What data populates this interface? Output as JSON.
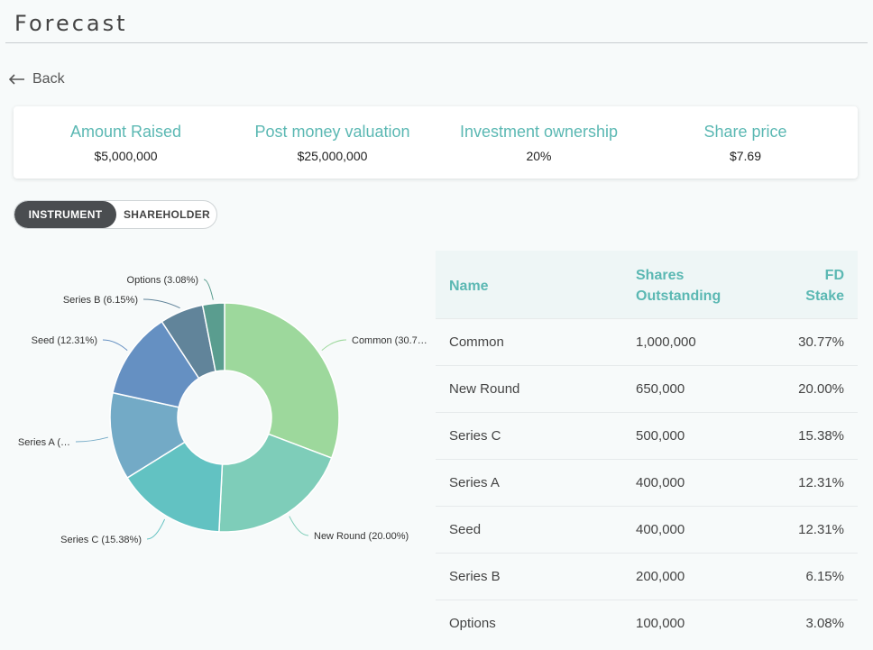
{
  "page": {
    "title": "Forecast",
    "back_label": "Back"
  },
  "summary": [
    {
      "label": "Amount Raised",
      "value": "$5,000,000"
    },
    {
      "label": "Post money valuation",
      "value": "$25,000,000"
    },
    {
      "label": "Investment ownership",
      "value": "20%"
    },
    {
      "label": "Share price",
      "value": "$7.69"
    }
  ],
  "toggle": {
    "active": "INSTRUMENT",
    "inactive": "SHAREHOLDER"
  },
  "table": {
    "headers": {
      "name": "Name",
      "shares_line1": "Shares",
      "shares_line2": "Outstanding",
      "stake_line1": "FD",
      "stake_line2": "Stake"
    },
    "rows": [
      {
        "name": "Common",
        "shares": "1,000,000",
        "stake": "30.77%"
      },
      {
        "name": "New Round",
        "shares": "650,000",
        "stake": "20.00%"
      },
      {
        "name": "Series C",
        "shares": "500,000",
        "stake": "15.38%"
      },
      {
        "name": "Series A",
        "shares": "400,000",
        "stake": "12.31%"
      },
      {
        "name": "Seed",
        "shares": "400,000",
        "stake": "12.31%"
      },
      {
        "name": "Series B",
        "shares": "200,000",
        "stake": "6.15%"
      },
      {
        "name": "Options",
        "shares": "100,000",
        "stake": "3.08%"
      }
    ]
  },
  "chart_data": {
    "type": "pie",
    "donut": true,
    "categories": [
      "Common",
      "New Round",
      "Series C",
      "Series A",
      "Seed",
      "Series B",
      "Options"
    ],
    "values": [
      30.77,
      20.0,
      15.38,
      12.31,
      12.31,
      6.15,
      3.08
    ],
    "labels": [
      "Common (30.7…",
      "New Round (20.00%)",
      "Series C (15.38%)",
      "Series A (…",
      "Seed (12.31%)",
      "Series B (6.15%)",
      "Options (3.08%)"
    ],
    "colors": [
      "#9dd89c",
      "#7ecdb9",
      "#62c2c2",
      "#73aac6",
      "#6590c2",
      "#61849a",
      "#5a9d8f"
    ],
    "title": "",
    "legend": "none"
  }
}
